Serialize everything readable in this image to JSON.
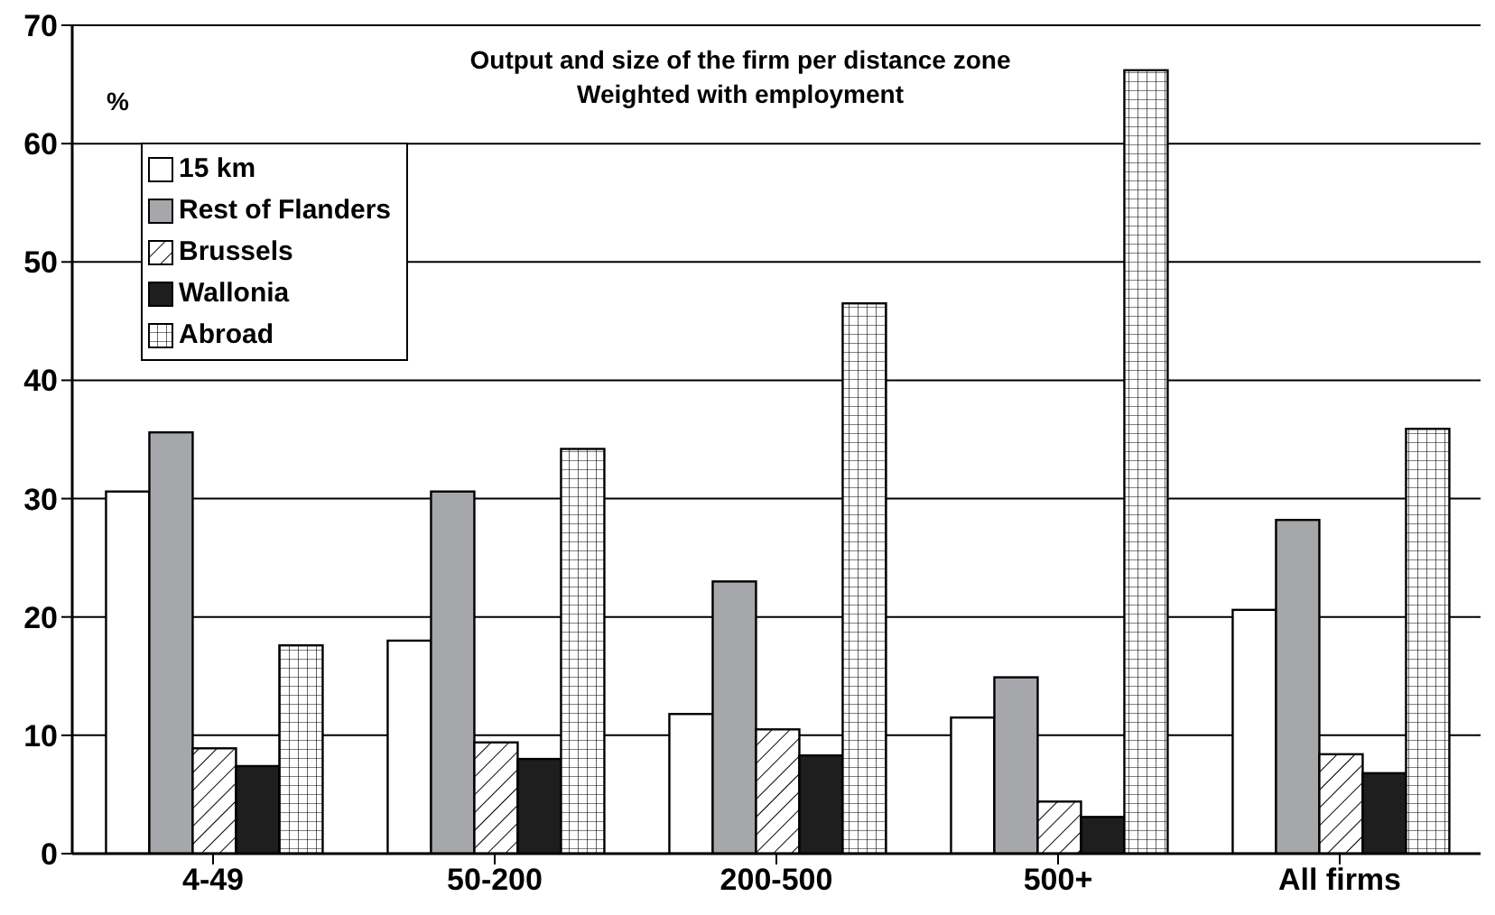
{
  "chart_data": {
    "type": "bar",
    "title": "Output and size of the firm per distance zone",
    "subtitle": "Weighted with employment",
    "ylabel": "%",
    "categories": [
      "4-49",
      "50-200",
      "200-500",
      "500+",
      "All firms"
    ],
    "series": [
      {
        "name": "15 km",
        "color": "#ffffff",
        "values": [
          30.6,
          18.0,
          11.8,
          11.5,
          20.6
        ]
      },
      {
        "name": "Rest of Flanders",
        "color": "#a6a7aa",
        "values": [
          35.6,
          30.6,
          23.0,
          14.9,
          28.2
        ]
      },
      {
        "name": "Brussels",
        "color": "#ffffff",
        "values": [
          8.9,
          9.4,
          10.5,
          4.4,
          8.4
        ]
      },
      {
        "name": "Wallonia",
        "color": "#1e1e1e",
        "values": [
          7.4,
          8.0,
          8.3,
          3.1,
          6.8
        ]
      },
      {
        "name": "Abroad",
        "color": "#ffffff",
        "values": [
          17.6,
          34.2,
          46.5,
          66.2,
          35.9
        ]
      }
    ],
    "ylim": [
      0,
      70
    ],
    "yticks": [
      0,
      10,
      20,
      30,
      40,
      50,
      60,
      70
    ],
    "grid": "y",
    "legend": "top left"
  }
}
